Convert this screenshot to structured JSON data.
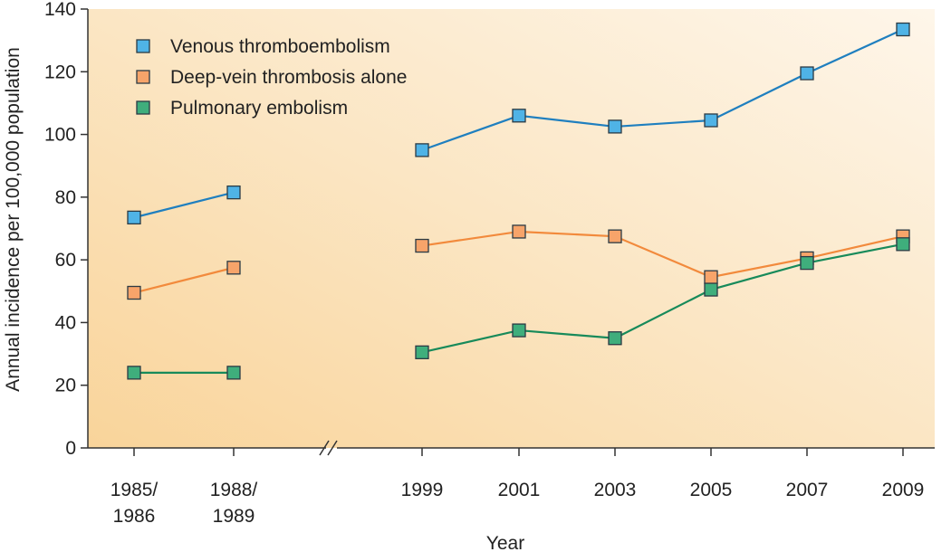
{
  "chart_data": {
    "type": "line",
    "title": "",
    "xlabel": "Year",
    "ylabel": "Annual incidence per 100,000 population",
    "ylim": [
      0,
      140
    ],
    "yticks": [
      "0",
      "20",
      "40",
      "60",
      "80",
      "100",
      "120",
      "140"
    ],
    "categories": [
      [
        "1985/",
        "1986"
      ],
      [
        "1988/",
        "1989"
      ],
      [
        "1999"
      ],
      [
        "2001"
      ],
      [
        "2003"
      ],
      [
        "2005"
      ],
      [
        "2007"
      ],
      [
        "2009"
      ]
    ],
    "axis_break": "//",
    "segments": [
      [
        0,
        1
      ],
      [
        2,
        7
      ]
    ],
    "grid": false,
    "legend_position": "top-left",
    "series": [
      {
        "name": "Venous thromboembolism",
        "color": "#1f7fbf",
        "marker": "#4fb3e6",
        "values": [
          73.5,
          81.5,
          95,
          106,
          102.5,
          104.5,
          119.5,
          133.5
        ]
      },
      {
        "name": "Deep-vein thrombosis alone",
        "color": "#f28a3c",
        "marker": "#f7a46a",
        "values": [
          49.5,
          57.5,
          64.5,
          69,
          67.5,
          54.5,
          60.5,
          67.5
        ]
      },
      {
        "name": "Pulmonary embolism",
        "color": "#178a5a",
        "marker": "#3fae7c",
        "values": [
          24,
          24,
          30.5,
          37.5,
          35,
          50.5,
          59,
          65
        ]
      }
    ]
  }
}
